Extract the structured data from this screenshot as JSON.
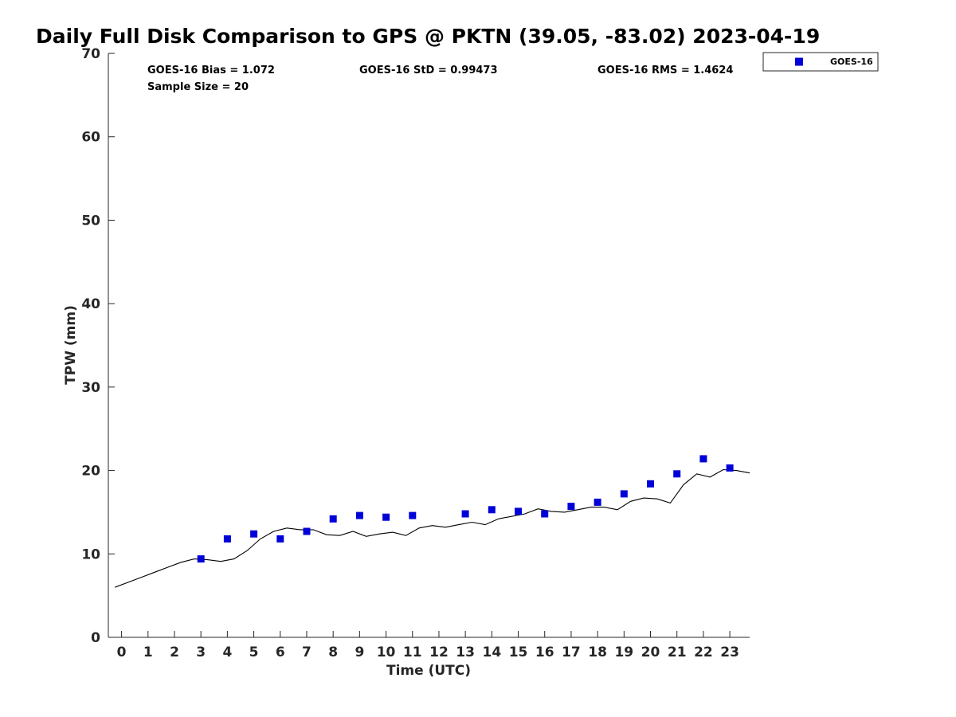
{
  "chart_data": {
    "type": "scatter",
    "title": "Daily Full Disk Comparison to GPS @ PKTN (39.05, -83.02) 2023-04-19",
    "xlabel": "Time (UTC)",
    "ylabel": "TPW (mm)",
    "xlim": [
      -0.5,
      23.75
    ],
    "ylim": [
      0,
      70
    ],
    "x_ticks": [
      0,
      1,
      2,
      3,
      4,
      5,
      6,
      7,
      8,
      9,
      10,
      11,
      12,
      13,
      14,
      15,
      16,
      17,
      18,
      19,
      20,
      21,
      22,
      23
    ],
    "y_ticks": [
      0,
      10,
      20,
      30,
      40,
      50,
      60,
      70
    ],
    "grid": false,
    "legend_position": "outside-top-right",
    "stats": {
      "bias": "GOES-16 Bias = 1.072",
      "std": "GOES-16 StD = 0.99473",
      "rms": "GOES-16 RMS = 1.4624",
      "sample": "Sample Size = 20"
    },
    "series": [
      {
        "name": "GOES-16",
        "kind": "scatter",
        "color": "#0000d8",
        "x": [
          3,
          4,
          5,
          6,
          7,
          8,
          9,
          10,
          11,
          13,
          14,
          15,
          16,
          17,
          18,
          19,
          20,
          21,
          22,
          23
        ],
        "y": [
          9.4,
          11.8,
          12.4,
          11.8,
          12.7,
          14.2,
          14.6,
          14.4,
          14.6,
          14.8,
          15.3,
          15.1,
          14.8,
          15.7,
          16.2,
          17.2,
          18.4,
          19.6,
          21.4,
          20.3
        ]
      },
      {
        "kind": "line",
        "color": "#000000",
        "x": [
          -0.25,
          0.25,
          0.75,
          1.25,
          1.75,
          2.25,
          2.75,
          3.25,
          3.75,
          4.25,
          4.75,
          5.25,
          5.75,
          6.25,
          6.75,
          7.25,
          7.75,
          8.25,
          8.75,
          9.25,
          9.75,
          10.25,
          10.75,
          11.25,
          11.75,
          12.25,
          12.75,
          13.25,
          13.75,
          14.25,
          14.75,
          15.25,
          15.75,
          16.25,
          16.75,
          17.25,
          17.75,
          18.25,
          18.75,
          19.25,
          19.75,
          20.25,
          20.75,
          21.25,
          21.75,
          22.25,
          22.75,
          23.25,
          23.75
        ],
        "y": [
          6.0,
          6.6,
          7.2,
          7.8,
          8.4,
          9.0,
          9.4,
          9.3,
          9.1,
          9.4,
          10.4,
          11.8,
          12.7,
          13.1,
          12.9,
          12.9,
          12.3,
          12.2,
          12.7,
          12.1,
          12.4,
          12.6,
          12.2,
          13.1,
          13.4,
          13.2,
          13.5,
          13.8,
          13.5,
          14.2,
          14.5,
          14.8,
          15.4,
          15.1,
          15.0,
          15.3,
          15.6,
          15.6,
          15.3,
          16.3,
          16.7,
          16.6,
          16.1,
          18.3,
          19.6,
          19.2,
          20.1,
          20.0,
          19.7
        ]
      }
    ]
  }
}
